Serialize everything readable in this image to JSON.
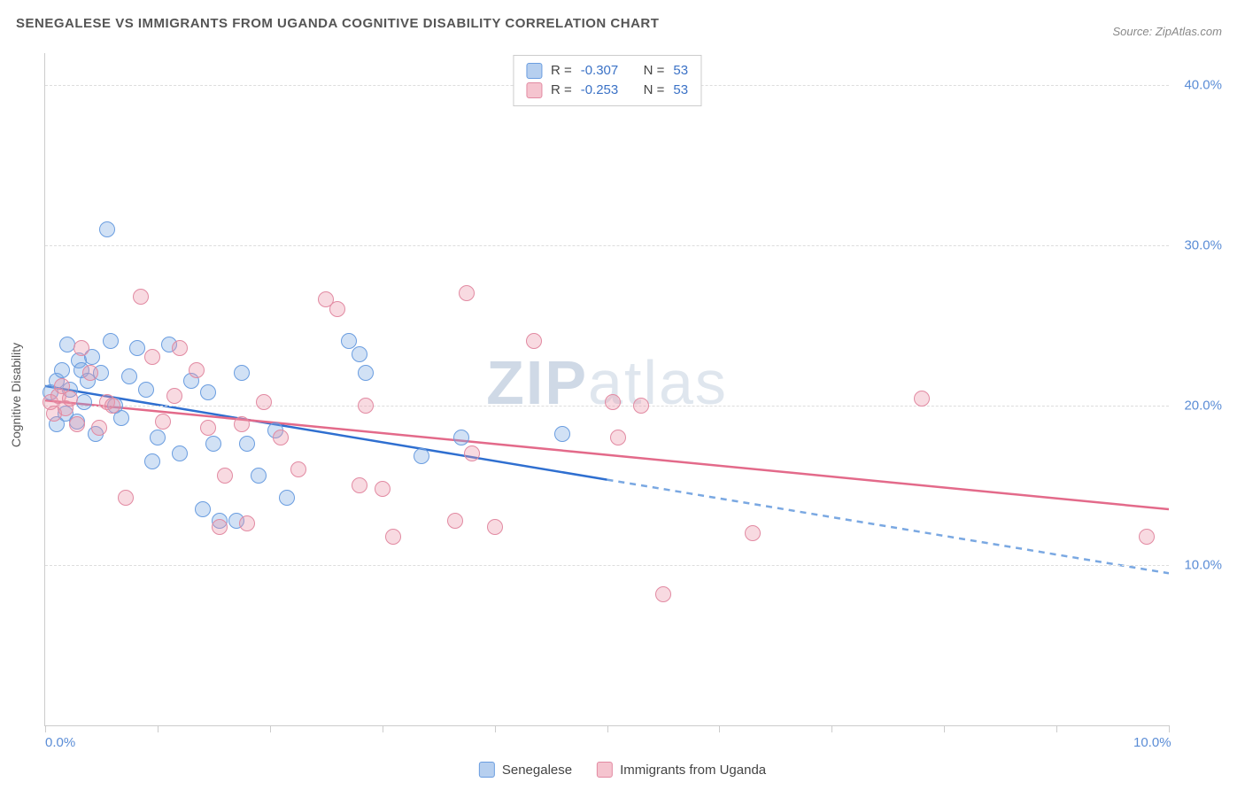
{
  "title": "SENEGALESE VS IMMIGRANTS FROM UGANDA COGNITIVE DISABILITY CORRELATION CHART",
  "source_prefix": "Source: ",
  "source_name": "ZipAtlas.com",
  "ylabel": "Cognitive Disability",
  "watermark_a": "ZIP",
  "watermark_b": "atlas",
  "chart": {
    "type": "scatter",
    "xlim": [
      0,
      10
    ],
    "ylim": [
      0,
      42
    ],
    "xticks": [
      0,
      1,
      2,
      3,
      4,
      5,
      6,
      7,
      8,
      9,
      10
    ],
    "xtick_labels": {
      "0": "0.0%",
      "10": "10.0%"
    },
    "ygrid": [
      10,
      20,
      30,
      40
    ],
    "ytick_labels": {
      "10": "10.0%",
      "20": "20.0%",
      "30": "30.0%",
      "40": "40.0%"
    },
    "background_color": "#ffffff",
    "grid_color": "#dddddd",
    "axis_color": "#cccccc",
    "label_color": "#5b8dd6",
    "point_radius": 9,
    "point_opacity": 0.35,
    "series": [
      {
        "key": "senegalese",
        "label": "Senegalese",
        "color_fill": "#7aa8e2",
        "color_stroke": "#6a9de0",
        "r_value": "-0.307",
        "n_value": "53",
        "trend": {
          "y_at_x0": 21.2,
          "y_at_x10": 9.5,
          "solid_until_x": 5.0,
          "solid_color": "#2f6fd0",
          "dash_color": "#7aa8e2",
          "width": 2.5
        },
        "points": [
          [
            0.05,
            20.8
          ],
          [
            0.1,
            21.5
          ],
          [
            0.1,
            18.8
          ],
          [
            0.15,
            22.2
          ],
          [
            0.18,
            19.5
          ],
          [
            0.2,
            23.8
          ],
          [
            0.22,
            21.0
          ],
          [
            0.28,
            19.0
          ],
          [
            0.3,
            22.8
          ],
          [
            0.32,
            22.2
          ],
          [
            0.35,
            20.2
          ],
          [
            0.38,
            21.5
          ],
          [
            0.42,
            23.0
          ],
          [
            0.45,
            18.2
          ],
          [
            0.5,
            22.0
          ],
          [
            0.55,
            31.0
          ],
          [
            0.58,
            24.0
          ],
          [
            0.62,
            20.0
          ],
          [
            0.68,
            19.2
          ],
          [
            0.75,
            21.8
          ],
          [
            0.82,
            23.6
          ],
          [
            0.9,
            21.0
          ],
          [
            0.95,
            16.5
          ],
          [
            1.0,
            18.0
          ],
          [
            1.1,
            23.8
          ],
          [
            1.2,
            17.0
          ],
          [
            1.3,
            21.5
          ],
          [
            1.4,
            13.5
          ],
          [
            1.45,
            20.8
          ],
          [
            1.5,
            17.6
          ],
          [
            1.55,
            12.8
          ],
          [
            1.7,
            12.8
          ],
          [
            1.75,
            22.0
          ],
          [
            1.8,
            17.6
          ],
          [
            1.9,
            15.6
          ],
          [
            2.05,
            18.4
          ],
          [
            2.15,
            14.2
          ],
          [
            2.7,
            24.0
          ],
          [
            2.8,
            23.2
          ],
          [
            2.85,
            22.0
          ],
          [
            3.35,
            16.8
          ],
          [
            3.7,
            18.0
          ],
          [
            4.6,
            18.2
          ]
        ]
      },
      {
        "key": "uganda",
        "label": "Immigrants from Uganda",
        "color_fill": "#ec94a8",
        "color_stroke": "#e28aa2",
        "r_value": "-0.253",
        "n_value": "53",
        "trend": {
          "y_at_x0": 20.3,
          "y_at_x10": 13.5,
          "solid_until_x": 10.0,
          "solid_color": "#e36a8a",
          "dash_color": "#e36a8a",
          "width": 2.5
        },
        "points": [
          [
            0.05,
            20.2
          ],
          [
            0.08,
            19.5
          ],
          [
            0.12,
            20.6
          ],
          [
            0.15,
            21.2
          ],
          [
            0.18,
            19.8
          ],
          [
            0.22,
            20.4
          ],
          [
            0.28,
            18.8
          ],
          [
            0.32,
            23.6
          ],
          [
            0.4,
            22.0
          ],
          [
            0.48,
            18.6
          ],
          [
            0.55,
            20.2
          ],
          [
            0.6,
            20.0
          ],
          [
            0.72,
            14.2
          ],
          [
            0.85,
            26.8
          ],
          [
            0.95,
            23.0
          ],
          [
            1.05,
            19.0
          ],
          [
            1.15,
            20.6
          ],
          [
            1.2,
            23.6
          ],
          [
            1.35,
            22.2
          ],
          [
            1.45,
            18.6
          ],
          [
            1.55,
            12.4
          ],
          [
            1.6,
            15.6
          ],
          [
            1.75,
            18.8
          ],
          [
            1.8,
            12.6
          ],
          [
            1.95,
            20.2
          ],
          [
            2.1,
            18.0
          ],
          [
            2.25,
            16.0
          ],
          [
            2.5,
            26.6
          ],
          [
            2.6,
            26.0
          ],
          [
            2.8,
            15.0
          ],
          [
            2.85,
            20.0
          ],
          [
            3.0,
            14.8
          ],
          [
            3.1,
            11.8
          ],
          [
            3.65,
            12.8
          ],
          [
            3.75,
            27.0
          ],
          [
            3.8,
            17.0
          ],
          [
            4.0,
            12.4
          ],
          [
            4.35,
            24.0
          ],
          [
            5.05,
            20.2
          ],
          [
            5.1,
            18.0
          ],
          [
            5.3,
            20.0
          ],
          [
            5.5,
            8.2
          ],
          [
            6.3,
            12.0
          ],
          [
            7.8,
            20.4
          ],
          [
            9.8,
            11.8
          ]
        ]
      }
    ]
  },
  "legend_r_label": "R =",
  "legend_n_label": "N ="
}
